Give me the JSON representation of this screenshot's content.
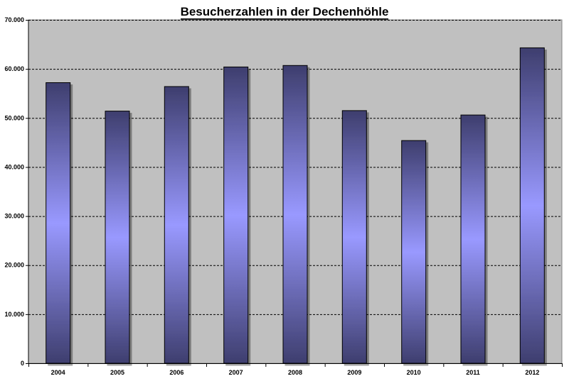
{
  "chart_data": {
    "type": "bar",
    "title": "Besucherzahlen in der Dechenhöhle",
    "xlabel": "",
    "ylabel": "",
    "categories": [
      "2004",
      "2005",
      "2006",
      "2007",
      "2008",
      "2009",
      "2010",
      "2011",
      "2012"
    ],
    "values": [
      57200,
      51400,
      56400,
      60400,
      60700,
      51500,
      45400,
      50600,
      64300
    ],
    "ylim": [
      0,
      70000
    ],
    "y_ticks": [
      0,
      10000,
      20000,
      30000,
      40000,
      50000,
      60000,
      70000
    ],
    "y_tick_labels": [
      "0",
      "10.000",
      "20.000",
      "30.000",
      "40.000",
      "50.000",
      "60.000",
      "70.000"
    ],
    "grid": "horizontal-dashed",
    "legend": "none",
    "colors": {
      "plot_background": "#c0c0c0",
      "bar_center": "#9999ff",
      "bar_edge": "#3e3e6e",
      "bar_outline": "#000000",
      "grid": "#000000"
    }
  }
}
